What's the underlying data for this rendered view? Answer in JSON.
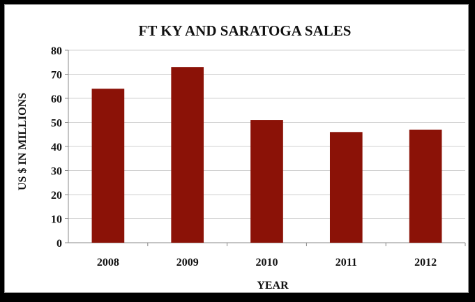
{
  "chart_data": {
    "type": "bar",
    "title": "FT KY AND SARATOGA SALES",
    "xlabel": "YEAR",
    "ylabel": "US $ IN MILLIONS",
    "categories": [
      "2008",
      "2009",
      "2010",
      "2011",
      "2012"
    ],
    "values": [
      64,
      73,
      51,
      46,
      47
    ],
    "ylim": [
      0,
      80
    ],
    "yticks": [
      "0",
      "10",
      "20",
      "30",
      "40",
      "50",
      "60",
      "70",
      "80"
    ],
    "bar_color": "#8b1207",
    "grid": true,
    "legend": "none"
  }
}
